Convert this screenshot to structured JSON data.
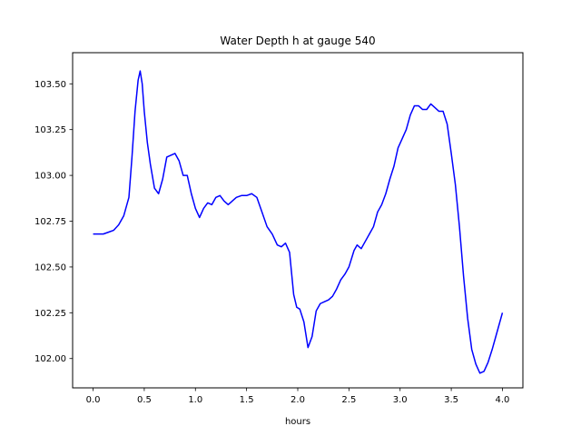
{
  "chart_data": {
    "type": "line",
    "title": "Water Depth h at gauge 540",
    "xlabel": "hours",
    "ylabel": "",
    "xlim": [
      -0.2,
      4.2
    ],
    "ylim": [
      101.84,
      103.67
    ],
    "xticks": [
      0.0,
      0.5,
      1.0,
      1.5,
      2.0,
      2.5,
      3.0,
      3.5,
      4.0
    ],
    "xtick_labels": [
      "0.0",
      "0.5",
      "1.0",
      "1.5",
      "2.0",
      "2.5",
      "3.0",
      "3.5",
      "4.0"
    ],
    "yticks": [
      102.0,
      102.25,
      102.5,
      102.75,
      103.0,
      103.25,
      103.5
    ],
    "ytick_labels": [
      "102.00",
      "102.25",
      "102.50",
      "102.75",
      "103.00",
      "103.25",
      "103.50"
    ],
    "grid": false,
    "series": [
      {
        "color": "#0000ff",
        "x": [
          0.0,
          0.1,
          0.15,
          0.2,
          0.25,
          0.3,
          0.35,
          0.38,
          0.41,
          0.44,
          0.46,
          0.48,
          0.5,
          0.53,
          0.56,
          0.6,
          0.64,
          0.68,
          0.72,
          0.76,
          0.8,
          0.84,
          0.88,
          0.92,
          0.96,
          1.0,
          1.04,
          1.08,
          1.12,
          1.16,
          1.2,
          1.24,
          1.28,
          1.32,
          1.36,
          1.4,
          1.45,
          1.5,
          1.55,
          1.6,
          1.65,
          1.7,
          1.75,
          1.8,
          1.84,
          1.88,
          1.92,
          1.96,
          1.99,
          2.02,
          2.06,
          2.1,
          2.14,
          2.18,
          2.22,
          2.26,
          2.3,
          2.34,
          2.38,
          2.42,
          2.46,
          2.5,
          2.55,
          2.58,
          2.62,
          2.66,
          2.7,
          2.74,
          2.78,
          2.82,
          2.86,
          2.9,
          2.94,
          2.98,
          3.02,
          3.06,
          3.1,
          3.14,
          3.18,
          3.22,
          3.26,
          3.3,
          3.34,
          3.38,
          3.42,
          3.46,
          3.5,
          3.54,
          3.58,
          3.62,
          3.66,
          3.7,
          3.74,
          3.78,
          3.82,
          3.86,
          3.9,
          3.95,
          4.0
        ],
        "y": [
          102.68,
          102.68,
          102.69,
          102.7,
          102.73,
          102.78,
          102.88,
          103.1,
          103.35,
          103.52,
          103.57,
          103.5,
          103.35,
          103.18,
          103.06,
          102.93,
          102.9,
          102.98,
          103.1,
          103.11,
          103.12,
          103.08,
          103.0,
          103.0,
          102.9,
          102.82,
          102.77,
          102.82,
          102.85,
          102.84,
          102.88,
          102.89,
          102.86,
          102.84,
          102.86,
          102.88,
          102.89,
          102.89,
          102.9,
          102.88,
          102.8,
          102.72,
          102.68,
          102.62,
          102.61,
          102.63,
          102.58,
          102.35,
          102.28,
          102.27,
          102.2,
          102.06,
          102.12,
          102.26,
          102.3,
          102.31,
          102.32,
          102.34,
          102.38,
          102.43,
          102.46,
          102.5,
          102.59,
          102.62,
          102.6,
          102.64,
          102.68,
          102.72,
          102.8,
          102.84,
          102.9,
          102.98,
          103.05,
          103.15,
          103.2,
          103.25,
          103.33,
          103.38,
          103.38,
          103.36,
          103.36,
          103.39,
          103.37,
          103.35,
          103.35,
          103.28,
          103.12,
          102.95,
          102.72,
          102.45,
          102.22,
          102.05,
          101.97,
          101.92,
          101.93,
          101.98,
          102.05,
          102.15,
          102.25
        ]
      }
    ]
  }
}
